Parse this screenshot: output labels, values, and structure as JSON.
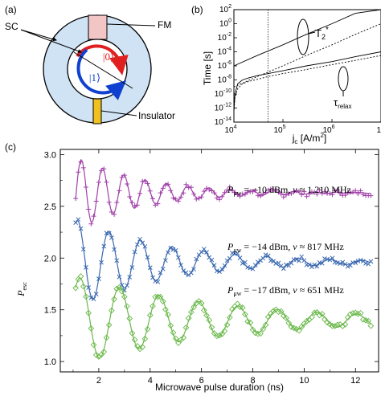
{
  "panel_a": {
    "label": "(a)",
    "sc": "SC",
    "fm": "FM",
    "state0": "|0⟩",
    "state1": "|1⟩",
    "insulator": "Insulator",
    "colors": {
      "sc_fill": "#cfe3f5",
      "fm_fill": "#f3c6c6",
      "insulator_fill": "#f0c020",
      "arrow_red": "#e02020",
      "arrow_blue": "#1040d0"
    }
  },
  "panel_b": {
    "label": "(b)",
    "ylabel": "Time [s]",
    "xlabel": "j",
    "xlabel_sub": "c",
    "xlabel_unit": " [A/m",
    "xlabel_sup": "2",
    "xlabel_end": "]",
    "t2_label": "T",
    "t2_sub": "2",
    "t2_sup": "*",
    "tau_label": "τ",
    "tau_sub": "relax",
    "yticks": [
      {
        "base": "10",
        "exp": "2",
        "v": 2
      },
      {
        "base": "10",
        "exp": "0",
        "v": 0
      },
      {
        "base": "10",
        "exp": "-2",
        "v": -2
      },
      {
        "base": "10",
        "exp": "-4",
        "v": -4
      },
      {
        "base": "10",
        "exp": "-6",
        "v": -6
      },
      {
        "base": "10",
        "exp": "-8",
        "v": -8
      },
      {
        "base": "10",
        "exp": "-10",
        "v": -10
      },
      {
        "base": "10",
        "exp": "-12",
        "v": -12
      },
      {
        "base": "10",
        "exp": "-14",
        "v": -14
      }
    ],
    "xticks": [
      {
        "base": "10",
        "exp": "4",
        "v": 4
      },
      {
        "base": "10",
        "exp": "5",
        "v": 5
      },
      {
        "base": "10",
        "exp": "6",
        "v": 6
      },
      {
        "base": "10",
        "exp": "",
        "v": 7
      }
    ],
    "chart_data": {
      "type": "line",
      "x_scale": "log",
      "y_scale": "log",
      "xlim": [
        10000,
        10000000
      ],
      "ylim": [
        1e-14,
        100
      ],
      "vertical_line_x": 50000,
      "series": [
        {
          "name": "T2*",
          "style": "solid",
          "x": [
            10000,
            30000,
            100000,
            300000,
            1000000,
            3000000,
            10000000
          ],
          "y": [
            1e-06,
            3e-05,
            0.001,
            0.03,
            1,
            30,
            1000
          ]
        },
        {
          "name": "T2*",
          "style": "dashed",
          "x": [
            10000,
            30000,
            100000,
            300000,
            1000000,
            3000000,
            10000000
          ],
          "y": [
            1e-09,
            3e-08,
            1e-06,
            3e-05,
            0.001,
            0.03,
            1
          ]
        },
        {
          "name": "τrelax",
          "style": "solid",
          "x": [
            10000,
            10500,
            12000,
            15000,
            20000,
            30000,
            50000,
            100000,
            300000,
            1000000,
            3000000,
            10000000
          ],
          "y": [
            3e-13,
            1e-10,
            3e-09,
            1e-08,
            2e-08,
            4e-08,
            8e-08,
            2e-07,
            1e-06,
            4e-06,
            2e-05,
            0.0001
          ]
        },
        {
          "name": "τrelax",
          "style": "dashed",
          "x": [
            10000,
            10500,
            12000,
            15000,
            20000,
            30000,
            50000,
            100000,
            300000,
            1000000,
            3000000,
            10000000
          ],
          "y": [
            3e-13,
            3e-11,
            6e-10,
            3e-09,
            6e-09,
            1.2e-08,
            3e-08,
            8e-08,
            3e-07,
            1.5e-06,
            6e-06,
            3e-05
          ]
        }
      ]
    }
  },
  "panel_c": {
    "label": "(c)",
    "ylabel": "P",
    "ylabel_sub": "esc",
    "xlabel": "Microwave pulse duration (ns)",
    "yticks": [
      "1.0",
      "1.5",
      "2.0",
      "2.5",
      "3.0"
    ],
    "xticks": [
      "2",
      "4",
      "6",
      "8",
      "10",
      "12"
    ],
    "annotations": [
      {
        "p": "P",
        "sub": "μw",
        "text": " = −10 dBm, ",
        "nu": "ν",
        "freq": " ≈ 1,210 MHz"
      },
      {
        "p": "P",
        "sub": "μw",
        "text": " = −14 dBm, ",
        "nu": "ν",
        "freq": " ≈ 817 MHz"
      },
      {
        "p": "P",
        "sub": "μw",
        "text": " = −17 dBm, ",
        "nu": "ν",
        "freq": " ≈ 651 MHz"
      }
    ],
    "chart_data": {
      "type": "scatter",
      "xlim": [
        0.5,
        12.9
      ],
      "ylim": [
        0.9,
        3.05
      ],
      "series": [
        {
          "name": "Pμw = −10 dBm, ν ≈ 1,210 MHz",
          "marker": "+",
          "color": "#a040a8",
          "offset": 2.63,
          "amplitude": 0.33,
          "period": 0.83,
          "decay": 2.6,
          "t0": 1.32,
          "x_start": 1.1,
          "x_end": 12.6
        },
        {
          "name": "Pμw = −14 dBm, ν ≈ 817 MHz",
          "marker": "x",
          "color": "#3a68b0",
          "offset": 1.96,
          "amplitude": 0.42,
          "period": 1.23,
          "decay": 3.6,
          "t0": 1.17,
          "x_start": 1.1,
          "x_end": 12.6
        },
        {
          "name": "Pμw = −17 dBm, ν ≈ 651 MHz",
          "marker": "diamond",
          "color": "#6ab84a",
          "offset": 1.4,
          "amplitude": 0.42,
          "period": 1.54,
          "decay": 5.5,
          "t0": 1.27,
          "x_start": 1.1,
          "x_end": 12.6
        }
      ]
    }
  }
}
